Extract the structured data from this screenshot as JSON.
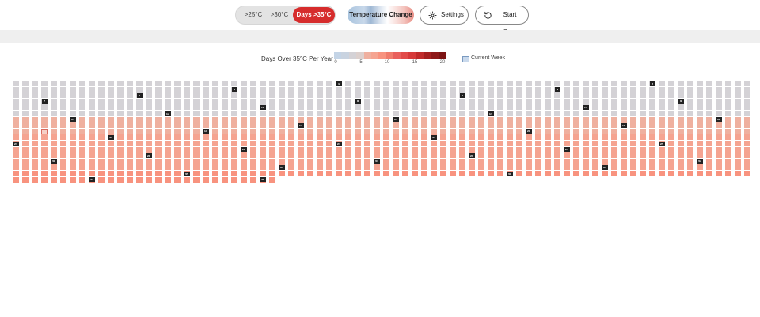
{
  "toolbar": {
    "filters": [
      {
        "label": ">25°C",
        "active": false
      },
      {
        "label": ">30°C",
        "active": false
      },
      {
        "label": "Days >35°C",
        "active": true
      }
    ],
    "temperature_change_label": "Temperature Change",
    "settings_label": "Settings",
    "start_over_label": "Start Over"
  },
  "legend": {
    "title": "Days Over 35°C Per Year",
    "ticks": [
      "0",
      "5",
      "10",
      "15",
      "20"
    ],
    "current_week_label": "Current Week",
    "palette": [
      "#c4d4e6",
      "#c9d3e0",
      "#d4d2d6",
      "#dcd0cd",
      "#efb09f",
      "#f5a491",
      "#f8937f",
      "#f07c6c",
      "#e9605c",
      "#e24b49",
      "#d63a3a",
      "#c02b2b",
      "#a51f1f",
      "#8e1818",
      "#7c1313"
    ]
  },
  "waffle": {
    "columns": 78,
    "total_weeks": 1276,
    "current_week": 627,
    "row_palette_index": [
      2,
      2,
      2,
      2,
      2,
      2,
      4,
      4,
      4,
      5,
      5,
      5,
      5,
      5,
      5,
      6,
      6,
      6,
      7,
      7,
      8,
      8,
      9,
      9,
      9,
      10,
      10,
      10,
      11,
      11,
      12,
      12,
      13,
      13,
      14,
      14,
      14,
      14,
      14,
      14,
      14
    ],
    "markers": [
      {
        "week": 34,
        "label": "1"
      },
      {
        "week": 67,
        "label": "2"
      },
      {
        "week": 101,
        "label": "3"
      },
      {
        "week": 135,
        "label": "4"
      },
      {
        "week": 169,
        "label": "5"
      },
      {
        "week": 203,
        "label": "6"
      },
      {
        "week": 237,
        "label": "7"
      },
      {
        "week": 270,
        "label": "8"
      },
      {
        "week": 304,
        "label": "9"
      },
      {
        "week": 338,
        "label": "10"
      },
      {
        "week": 372,
        "label": "11"
      },
      {
        "week": 406,
        "label": "12"
      },
      {
        "week": 440,
        "label": "13"
      },
      {
        "week": 474,
        "label": "14"
      },
      {
        "week": 508,
        "label": "15"
      },
      {
        "week": 542,
        "label": "16"
      },
      {
        "week": 576,
        "label": "17"
      },
      {
        "week": 610,
        "label": "18"
      },
      {
        "week": 644,
        "label": "19"
      },
      {
        "week": 678,
        "label": "20"
      },
      {
        "week": 712,
        "label": "21"
      },
      {
        "week": 746,
        "label": "22"
      },
      {
        "week": 780,
        "label": "23"
      },
      {
        "week": 814,
        "label": "24"
      },
      {
        "week": 848,
        "label": "25"
      },
      {
        "week": 882,
        "label": "26"
      },
      {
        "week": 916,
        "label": "27"
      },
      {
        "week": 950,
        "label": "28"
      },
      {
        "week": 984,
        "label": "29"
      },
      {
        "week": 1018,
        "label": "30"
      },
      {
        "week": 1052,
        "label": "31"
      },
      {
        "week": 1086,
        "label": "32"
      },
      {
        "week": 1120,
        "label": "33"
      },
      {
        "week": 1154,
        "label": "34"
      },
      {
        "week": 1188,
        "label": "35"
      },
      {
        "week": 1222,
        "label": "36"
      },
      {
        "week": 1256,
        "label": "37"
      },
      {
        "week": 1274,
        "label": "38"
      }
    ]
  }
}
